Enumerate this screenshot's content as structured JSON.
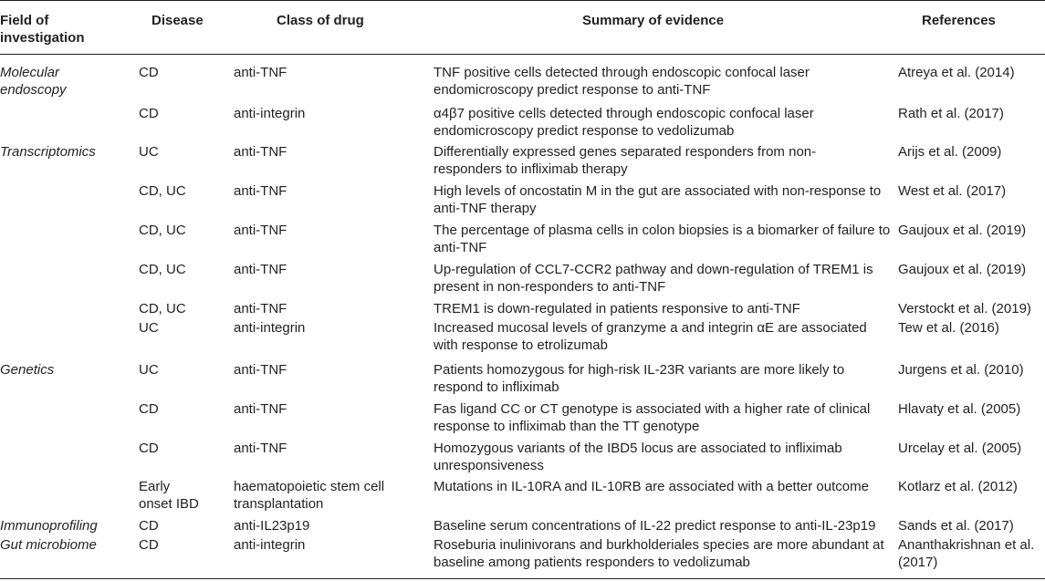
{
  "header": {
    "field": [
      "Field of",
      "investigation"
    ],
    "disease": "Disease",
    "drug": "Class of drug",
    "summary": "Summary of evidence",
    "references": "References"
  },
  "rows": [
    {
      "field": [
        "Molecular",
        "endoscopy"
      ],
      "disease": [
        "CD"
      ],
      "drug": [
        "anti-TNF"
      ],
      "summary": [
        "TNF positive cells detected through endoscopic confocal laser",
        "endomicroscopy predict response to anti-TNF"
      ],
      "ref": [
        "Atreya et al. (2014)"
      ]
    },
    {
      "field": [],
      "disease": [
        "CD"
      ],
      "drug": [
        "anti-integrin"
      ],
      "summary": [
        "α4β7 positive cells detected through endoscopic confocal laser",
        "endomicroscopy predict response to vedolizumab"
      ],
      "ref": [
        "Rath et al. (2017)"
      ]
    },
    {
      "field": [
        "Transcriptomics"
      ],
      "disease": [
        "UC"
      ],
      "drug": [
        "anti-TNF"
      ],
      "summary": [
        "Differentially expressed genes separated responders from non-",
        "responders to infliximab therapy"
      ],
      "ref": [
        "Arijs et al. (2009)"
      ]
    },
    {
      "field": [],
      "disease": [
        "CD, UC"
      ],
      "drug": [
        "anti-TNF"
      ],
      "summary": [
        "High levels of oncostatin M in the gut are associated with non-response to",
        "anti-TNF therapy"
      ],
      "ref": [
        "West et al. (2017)"
      ]
    },
    {
      "field": [],
      "disease": [
        "CD, UC"
      ],
      "drug": [
        "anti-TNF"
      ],
      "summary": [
        "The percentage of plasma cells in colon biopsies is a biomarker of failure to",
        "anti-TNF"
      ],
      "ref": [
        "Gaujoux et al. (2019)"
      ]
    },
    {
      "field": [],
      "disease": [
        "CD, UC"
      ],
      "drug": [
        "anti-TNF"
      ],
      "summary": [
        "Up-regulation of CCL7-CCR2 pathway and down-regulation of TREM1 is",
        "present in non-responders to anti-TNF"
      ],
      "ref": [
        "Gaujoux et al. (2019)"
      ]
    },
    {
      "field": [],
      "disease": [
        "CD, UC"
      ],
      "drug": [
        "anti-TNF"
      ],
      "summary": [
        "TREM1 is down-regulated in patients responsive to anti-TNF"
      ],
      "ref": [
        "Verstockt et al. (2019)"
      ]
    },
    {
      "field": [],
      "disease": [
        "UC"
      ],
      "drug": [
        "anti-integrin"
      ],
      "summary": [
        "Increased mucosal levels of granzyme a and integrin αE are associated",
        "with response to etrolizumab"
      ],
      "ref": [
        "Tew et al. (2016)"
      ]
    },
    {
      "field": [
        "Genetics"
      ],
      "disease": [
        "UC"
      ],
      "drug": [
        "anti-TNF"
      ],
      "summary": [
        "Patients homozygous for high-risk IL-23R variants are more likely to",
        "respond to infliximab"
      ],
      "ref": [
        "Jurgens et al. (2010)"
      ]
    },
    {
      "field": [],
      "disease": [
        "CD"
      ],
      "drug": [
        "anti-TNF"
      ],
      "summary": [
        "Fas ligand CC or CT genotype is associated with a higher rate of clinical",
        "response to infliximab than the TT genotype"
      ],
      "ref": [
        "Hlavaty et al. (2005)"
      ]
    },
    {
      "field": [],
      "disease": [
        "CD"
      ],
      "drug": [
        "anti-TNF"
      ],
      "summary": [
        "Homozygous variants of the IBD5 locus are associated to infliximab",
        "unresponsiveness"
      ],
      "ref": [
        "Urcelay et al. (2005)"
      ]
    },
    {
      "field": [],
      "disease": [
        "Early",
        "onset IBD"
      ],
      "drug": [
        "haematopoietic stem cell",
        "transplantation"
      ],
      "summary": [
        "Mutations in IL-10RA and IL-10RB are associated with a better outcome"
      ],
      "ref": [
        "Kotlarz et al. (2012)"
      ]
    },
    {
      "field": [
        "Immunoprofiling"
      ],
      "disease": [
        "CD"
      ],
      "drug": [
        "anti-IL23p19"
      ],
      "summary": [
        "Baseline serum concentrations of IL-22 predict response to anti-IL-23p19"
      ],
      "ref": [
        "Sands et al. (2017)"
      ]
    },
    {
      "field": [
        "Gut microbiome"
      ],
      "disease": [
        "CD"
      ],
      "drug": [
        "anti-integrin"
      ],
      "summary": [
        "Roseburia inulinivorans and burkholderiales species are more abundant at",
        "baseline among patients responders to vedolizumab"
      ],
      "ref": [
        "Ananthakrishnan et al.",
        "(2017)"
      ]
    }
  ]
}
